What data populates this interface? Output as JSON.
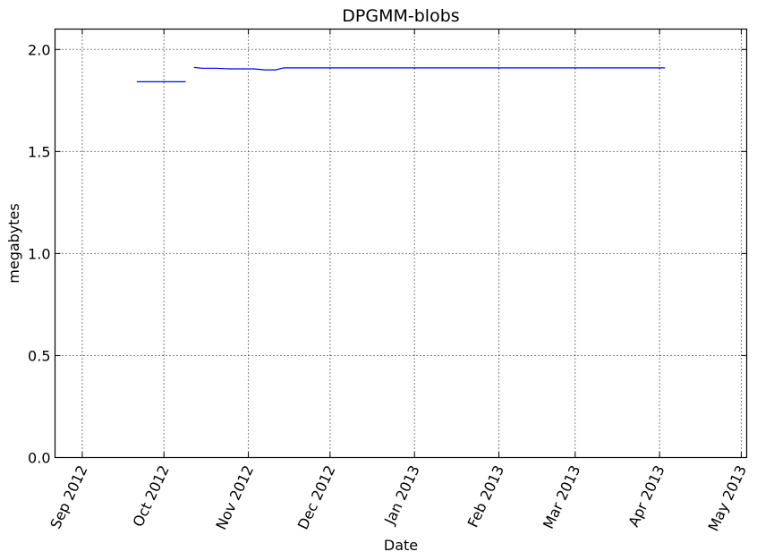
{
  "chart_data": {
    "type": "line",
    "title": "DPGMM-blobs",
    "xlabel": "Date",
    "ylabel": "megabytes",
    "xlim": [
      "2012-08-22",
      "2013-05-03"
    ],
    "ylim": [
      0,
      2.1
    ],
    "grid": true,
    "x_ticks": [
      {
        "date": "2012-09-01",
        "label": "Sep 2012"
      },
      {
        "date": "2012-10-01",
        "label": "Oct 2012"
      },
      {
        "date": "2012-11-01",
        "label": "Nov 2012"
      },
      {
        "date": "2012-12-01",
        "label": "Dec 2012"
      },
      {
        "date": "2013-01-01",
        "label": "Jan 2013"
      },
      {
        "date": "2013-02-01",
        "label": "Feb 2013"
      },
      {
        "date": "2013-03-01",
        "label": "Mar 2013"
      },
      {
        "date": "2013-04-01",
        "label": "Apr 2013"
      },
      {
        "date": "2013-05-01",
        "label": "May 2013"
      }
    ],
    "y_ticks": [
      {
        "value": 0.0,
        "label": "0.0"
      },
      {
        "value": 0.5,
        "label": "0.5"
      },
      {
        "value": 1.0,
        "label": "1.0"
      },
      {
        "value": 1.5,
        "label": "1.5"
      },
      {
        "value": 2.0,
        "label": "2.0"
      }
    ],
    "line_color": "#0000ff",
    "segments": [
      [
        {
          "x": "2012-09-21",
          "y": 1.842
        },
        {
          "x": "2012-10-09",
          "y": 1.842
        }
      ],
      [
        {
          "x": "2012-10-12",
          "y": 1.912
        },
        {
          "x": "2012-10-15",
          "y": 1.908
        },
        {
          "x": "2012-10-20",
          "y": 1.908
        },
        {
          "x": "2012-10-25",
          "y": 1.905
        },
        {
          "x": "2012-11-03",
          "y": 1.905
        },
        {
          "x": "2012-11-07",
          "y": 1.9
        },
        {
          "x": "2012-11-11",
          "y": 1.9
        },
        {
          "x": "2012-11-14",
          "y": 1.91
        },
        {
          "x": "2013-04-03",
          "y": 1.91
        }
      ]
    ]
  }
}
